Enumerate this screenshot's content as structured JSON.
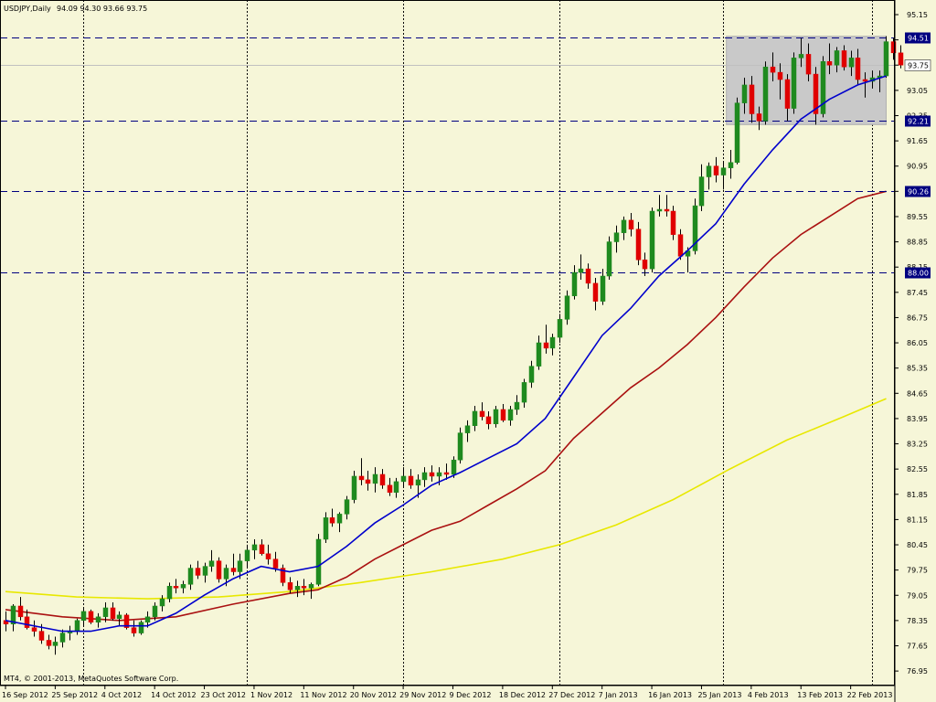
{
  "header": {
    "symbol_tf": "USDJPY,Daily",
    "ohlc": "94.09 94.30 93.66 93.75"
  },
  "copyright": "MT4, © 2001-2013, MetaQuotes Software Corp.",
  "colors": {
    "background": "#f6f6d8",
    "bull": "#1f8a1f",
    "bear": "#e00000",
    "ma_fast": "#0000cc",
    "ma_mid": "#aa1111",
    "ma_slow": "#e8e800",
    "hline": "#000080",
    "box": "#c9c9c9"
  },
  "chart_data": {
    "type": "candlestick",
    "title": "USDJPY,Daily",
    "y_ticks": [
      "95.15",
      "94.45",
      "93.75",
      "93.05",
      "92.35",
      "91.65",
      "90.95",
      "90.25",
      "89.55",
      "88.85",
      "88.15",
      "87.45",
      "86.75",
      "86.05",
      "85.35",
      "84.65",
      "83.95",
      "83.25",
      "82.55",
      "81.85",
      "81.15",
      "80.45",
      "79.75",
      "79.05",
      "78.35",
      "77.65",
      "76.95"
    ],
    "ylim": [
      76.95,
      95.15
    ],
    "x_labels": [
      {
        "label": "16 Sep 2012",
        "bar": 0
      },
      {
        "label": "25 Sep 2012",
        "bar": 7
      },
      {
        "label": "4 Oct 2012",
        "bar": 14
      },
      {
        "label": "14 Oct 2012",
        "bar": 21
      },
      {
        "label": "23 Oct 2012",
        "bar": 28
      },
      {
        "label": "1 Nov 2012",
        "bar": 35
      },
      {
        "label": "11 Nov 2012",
        "bar": 42
      },
      {
        "label": "20 Nov 2012",
        "bar": 49
      },
      {
        "label": "29 Nov 2012",
        "bar": 56
      },
      {
        "label": "9 Dec 2012",
        "bar": 63
      },
      {
        "label": "18 Dec 2012",
        "bar": 70
      },
      {
        "label": "27 Dec 2012",
        "bar": 77
      },
      {
        "label": "7 Jan 2013",
        "bar": 84
      },
      {
        "label": "16 Jan 2013",
        "bar": 91
      },
      {
        "label": "25 Jan 2013",
        "bar": 98
      },
      {
        "label": "4 Feb 2013",
        "bar": 105
      },
      {
        "label": "13 Feb 2013",
        "bar": 112
      },
      {
        "label": "22 Feb 2013",
        "bar": 119
      }
    ],
    "vgrid_bars": [
      11,
      34,
      56,
      78,
      101,
      122
    ],
    "hlines": [
      {
        "label": "94.51",
        "value": 94.51
      },
      {
        "label": "92.21",
        "value": 92.21
      },
      {
        "label": "90.26",
        "value": 90.26
      },
      {
        "label": "88.00",
        "value": 88.0
      }
    ],
    "current_price": {
      "label": "93.75",
      "value": 93.75
    },
    "rectangle": {
      "bar_start": 101.5,
      "bar_end": 124,
      "y_top": 94.55,
      "y_bottom": 92.1
    },
    "candles": [
      [
        78.35,
        78.6,
        78.05,
        78.25
      ],
      [
        78.25,
        78.8,
        78.05,
        78.75
      ],
      [
        78.75,
        79.0,
        78.35,
        78.45
      ],
      [
        78.45,
        78.65,
        78.1,
        78.15
      ],
      [
        78.15,
        78.35,
        77.9,
        78.05
      ],
      [
        78.05,
        78.25,
        77.7,
        77.8
      ],
      [
        77.8,
        77.95,
        77.55,
        77.65
      ],
      [
        77.65,
        77.9,
        77.4,
        77.75
      ],
      [
        77.75,
        78.1,
        77.6,
        78.0
      ],
      [
        78.0,
        78.2,
        77.8,
        78.05
      ],
      [
        78.05,
        78.4,
        77.95,
        78.35
      ],
      [
        78.35,
        78.7,
        78.2,
        78.6
      ],
      [
        78.6,
        78.65,
        78.25,
        78.3
      ],
      [
        78.3,
        78.55,
        78.15,
        78.45
      ],
      [
        78.45,
        78.85,
        78.3,
        78.7
      ],
      [
        78.7,
        78.85,
        78.35,
        78.4
      ],
      [
        78.4,
        78.6,
        78.2,
        78.5
      ],
      [
        78.5,
        78.55,
        78.1,
        78.15
      ],
      [
        78.15,
        78.35,
        77.9,
        78.0
      ],
      [
        78.0,
        78.35,
        77.95,
        78.3
      ],
      [
        78.3,
        78.6,
        78.15,
        78.45
      ],
      [
        78.45,
        78.85,
        78.35,
        78.75
      ],
      [
        78.75,
        79.05,
        78.6,
        78.95
      ],
      [
        78.95,
        79.4,
        78.85,
        79.3
      ],
      [
        79.3,
        79.5,
        79.1,
        79.25
      ],
      [
        79.25,
        79.45,
        79.1,
        79.35
      ],
      [
        79.35,
        79.9,
        79.2,
        79.8
      ],
      [
        79.8,
        80.0,
        79.5,
        79.6
      ],
      [
        79.6,
        79.95,
        79.4,
        79.85
      ],
      [
        79.85,
        80.3,
        79.7,
        80.0
      ],
      [
        80.0,
        80.1,
        79.4,
        79.5
      ],
      [
        79.5,
        79.9,
        79.3,
        79.8
      ],
      [
        79.8,
        80.2,
        79.6,
        79.7
      ],
      [
        79.7,
        80.2,
        79.5,
        80.0
      ],
      [
        80.0,
        80.45,
        79.8,
        80.3
      ],
      [
        80.3,
        80.6,
        80.05,
        80.45
      ],
      [
        80.45,
        80.6,
        80.15,
        80.2
      ],
      [
        80.2,
        80.45,
        79.9,
        80.05
      ],
      [
        80.05,
        80.25,
        79.7,
        79.8
      ],
      [
        79.8,
        79.9,
        79.3,
        79.4
      ],
      [
        79.4,
        79.55,
        79.1,
        79.2
      ],
      [
        79.2,
        79.45,
        79.0,
        79.3
      ],
      [
        79.3,
        79.5,
        79.05,
        79.25
      ],
      [
        79.25,
        79.4,
        78.95,
        79.35
      ],
      [
        79.35,
        80.75,
        79.3,
        80.6
      ],
      [
        80.6,
        81.35,
        80.5,
        81.2
      ],
      [
        81.2,
        81.45,
        80.95,
        81.05
      ],
      [
        81.05,
        81.35,
        80.8,
        81.3
      ],
      [
        81.3,
        81.8,
        81.15,
        81.7
      ],
      [
        81.7,
        82.5,
        81.6,
        82.35
      ],
      [
        82.35,
        82.85,
        82.1,
        82.25
      ],
      [
        82.25,
        82.5,
        81.95,
        82.15
      ],
      [
        82.15,
        82.6,
        81.9,
        82.4
      ],
      [
        82.4,
        82.55,
        82.0,
        82.1
      ],
      [
        82.1,
        82.3,
        81.8,
        81.9
      ],
      [
        81.9,
        82.3,
        81.75,
        82.2
      ],
      [
        82.2,
        82.6,
        82.05,
        82.35
      ],
      [
        82.35,
        82.55,
        82.0,
        82.1
      ],
      [
        82.1,
        82.4,
        81.75,
        82.25
      ],
      [
        82.25,
        82.6,
        82.05,
        82.45
      ],
      [
        82.45,
        82.65,
        82.2,
        82.35
      ],
      [
        82.35,
        82.6,
        82.1,
        82.45
      ],
      [
        82.45,
        82.7,
        82.25,
        82.4
      ],
      [
        82.4,
        82.9,
        82.3,
        82.8
      ],
      [
        82.8,
        83.7,
        82.7,
        83.55
      ],
      [
        83.55,
        83.9,
        83.3,
        83.75
      ],
      [
        83.75,
        84.3,
        83.6,
        84.15
      ],
      [
        84.15,
        84.4,
        83.9,
        84.0
      ],
      [
        84.0,
        84.15,
        83.65,
        83.8
      ],
      [
        83.8,
        84.3,
        83.7,
        84.2
      ],
      [
        84.2,
        84.35,
        83.85,
        83.9
      ],
      [
        83.9,
        84.3,
        83.75,
        84.2
      ],
      [
        84.2,
        84.6,
        84.05,
        84.4
      ],
      [
        84.4,
        85.05,
        84.25,
        84.95
      ],
      [
        84.95,
        85.55,
        84.8,
        85.4
      ],
      [
        85.4,
        86.25,
        85.3,
        86.05
      ],
      [
        86.05,
        86.55,
        85.75,
        85.9
      ],
      [
        85.9,
        86.3,
        85.7,
        86.2
      ],
      [
        86.2,
        86.85,
        86.05,
        86.7
      ],
      [
        86.7,
        87.5,
        86.55,
        87.35
      ],
      [
        87.35,
        88.2,
        87.25,
        88.0
      ],
      [
        88.0,
        88.5,
        87.8,
        88.1
      ],
      [
        88.1,
        88.25,
        87.55,
        87.7
      ],
      [
        87.7,
        87.85,
        86.95,
        87.2
      ],
      [
        87.2,
        88.1,
        87.1,
        87.9
      ],
      [
        87.9,
        89.0,
        87.8,
        88.85
      ],
      [
        88.85,
        89.3,
        88.55,
        89.1
      ],
      [
        89.1,
        89.55,
        88.9,
        89.45
      ],
      [
        89.45,
        89.65,
        89.0,
        89.2
      ],
      [
        89.2,
        89.4,
        88.2,
        88.35
      ],
      [
        88.35,
        88.55,
        87.9,
        88.1
      ],
      [
        88.1,
        89.8,
        88.0,
        89.7
      ],
      [
        89.7,
        90.15,
        89.55,
        89.75
      ],
      [
        89.75,
        90.15,
        89.55,
        89.7
      ],
      [
        89.7,
        89.85,
        88.9,
        89.05
      ],
      [
        89.05,
        89.2,
        88.35,
        88.45
      ],
      [
        88.45,
        88.7,
        88.0,
        88.6
      ],
      [
        88.6,
        90.05,
        88.5,
        89.85
      ],
      [
        89.85,
        91.0,
        89.7,
        90.65
      ],
      [
        90.65,
        91.05,
        90.3,
        90.95
      ],
      [
        90.95,
        91.2,
        90.5,
        90.7
      ],
      [
        90.7,
        91.05,
        90.3,
        90.9
      ],
      [
        90.9,
        91.4,
        90.6,
        91.05
      ],
      [
        91.05,
        92.85,
        91.0,
        92.7
      ],
      [
        92.7,
        93.4,
        92.4,
        93.2
      ],
      [
        93.2,
        93.45,
        92.15,
        92.4
      ],
      [
        92.4,
        92.6,
        91.95,
        92.2
      ],
      [
        92.2,
        93.85,
        92.1,
        93.7
      ],
      [
        93.7,
        94.1,
        93.3,
        93.55
      ],
      [
        93.55,
        93.8,
        92.8,
        93.35
      ],
      [
        93.35,
        93.5,
        92.2,
        92.55
      ],
      [
        92.55,
        94.1,
        92.4,
        93.95
      ],
      [
        93.95,
        94.5,
        93.7,
        94.05
      ],
      [
        94.05,
        94.35,
        93.3,
        93.5
      ],
      [
        93.5,
        93.7,
        92.1,
        92.4
      ],
      [
        92.4,
        94.0,
        92.3,
        93.85
      ],
      [
        93.85,
        94.35,
        93.5,
        93.75
      ],
      [
        93.75,
        94.25,
        93.55,
        94.15
      ],
      [
        94.15,
        94.3,
        93.6,
        93.7
      ],
      [
        93.7,
        94.15,
        93.45,
        93.95
      ],
      [
        93.95,
        94.2,
        93.2,
        93.35
      ],
      [
        93.35,
        93.55,
        92.85,
        93.3
      ],
      [
        93.3,
        93.6,
        93.1,
        93.4
      ],
      [
        93.4,
        93.6,
        93.0,
        93.45
      ],
      [
        93.45,
        94.55,
        93.4,
        94.4
      ],
      [
        94.4,
        94.5,
        93.9,
        94.09
      ],
      [
        94.09,
        94.3,
        93.66,
        93.75
      ]
    ],
    "ma_fast": [
      [
        0,
        78.35
      ],
      [
        8,
        78.05
      ],
      [
        12,
        78.05
      ],
      [
        16,
        78.2
      ],
      [
        20,
        78.2
      ],
      [
        24,
        78.55
      ],
      [
        28,
        79.05
      ],
      [
        32,
        79.5
      ],
      [
        36,
        79.85
      ],
      [
        40,
        79.7
      ],
      [
        44,
        79.85
      ],
      [
        48,
        80.4
      ],
      [
        52,
        81.05
      ],
      [
        56,
        81.55
      ],
      [
        60,
        82.1
      ],
      [
        64,
        82.45
      ],
      [
        68,
        82.85
      ],
      [
        72,
        83.25
      ],
      [
        76,
        83.95
      ],
      [
        80,
        85.1
      ],
      [
        84,
        86.25
      ],
      [
        88,
        87.0
      ],
      [
        92,
        87.9
      ],
      [
        96,
        88.6
      ],
      [
        100,
        89.35
      ],
      [
        104,
        90.45
      ],
      [
        108,
        91.4
      ],
      [
        112,
        92.25
      ],
      [
        116,
        92.8
      ],
      [
        120,
        93.2
      ],
      [
        124,
        93.45
      ]
    ],
    "ma_mid": [
      [
        0,
        78.65
      ],
      [
        8,
        78.45
      ],
      [
        16,
        78.35
      ],
      [
        24,
        78.45
      ],
      [
        32,
        78.8
      ],
      [
        40,
        79.1
      ],
      [
        44,
        79.2
      ],
      [
        48,
        79.55
      ],
      [
        52,
        80.05
      ],
      [
        56,
        80.45
      ],
      [
        60,
        80.85
      ],
      [
        64,
        81.1
      ],
      [
        68,
        81.55
      ],
      [
        72,
        82.0
      ],
      [
        76,
        82.5
      ],
      [
        80,
        83.4
      ],
      [
        84,
        84.1
      ],
      [
        88,
        84.8
      ],
      [
        92,
        85.35
      ],
      [
        96,
        86.0
      ],
      [
        100,
        86.75
      ],
      [
        104,
        87.6
      ],
      [
        108,
        88.4
      ],
      [
        112,
        89.05
      ],
      [
        116,
        89.55
      ],
      [
        120,
        90.05
      ],
      [
        124,
        90.25
      ]
    ],
    "ma_slow": [
      [
        0,
        79.15
      ],
      [
        10,
        79.0
      ],
      [
        20,
        78.95
      ],
      [
        30,
        79.0
      ],
      [
        40,
        79.15
      ],
      [
        50,
        79.4
      ],
      [
        60,
        79.7
      ],
      [
        70,
        80.05
      ],
      [
        78,
        80.45
      ],
      [
        86,
        81.0
      ],
      [
        94,
        81.7
      ],
      [
        102,
        82.55
      ],
      [
        110,
        83.35
      ],
      [
        118,
        84.0
      ],
      [
        124,
        84.5
      ]
    ]
  }
}
